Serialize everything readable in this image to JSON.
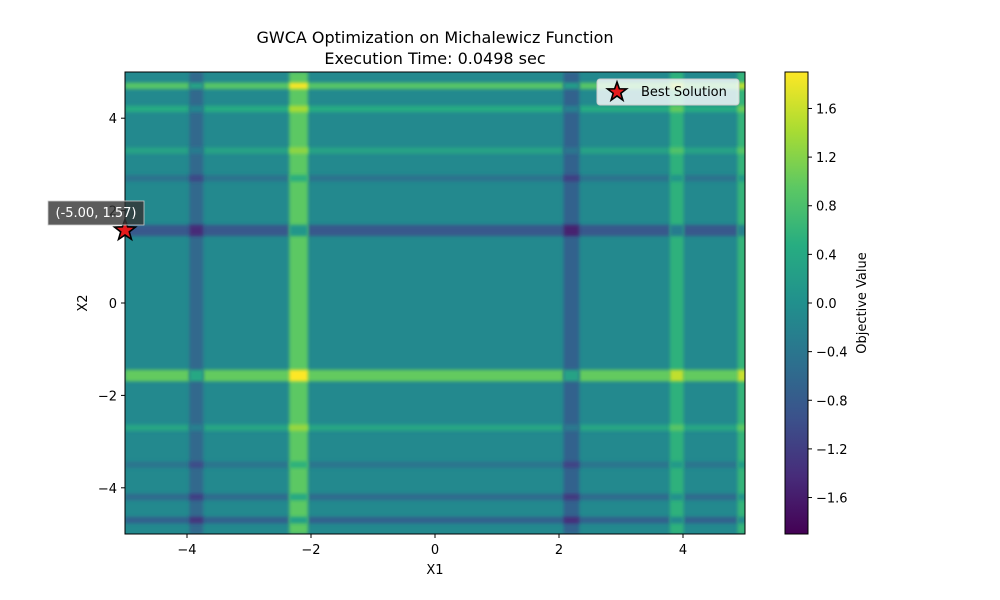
{
  "chart_data": {
    "type": "heatmap",
    "title": "GWCA Optimization on Michalewicz Function",
    "subtitle": "Execution Time: 0.0498 sec",
    "xlabel": "X1",
    "ylabel": "X2",
    "xlim": [
      -5,
      5
    ],
    "ylim": [
      -5,
      5
    ],
    "xticks": [
      "−4",
      "−2",
      "0",
      "2",
      "4"
    ],
    "xtick_values": [
      -4,
      -2,
      0,
      2,
      4
    ],
    "yticks": [
      "−4",
      "−2",
      "0",
      "2",
      "4"
    ],
    "ytick_values": [
      -4,
      -2,
      0,
      2,
      4
    ],
    "colormap": "viridis",
    "colorbar": {
      "label": "Objective Value",
      "range": [
        -1.9,
        1.9
      ],
      "ticks": [
        "−1.6",
        "−1.2",
        "−0.8",
        "−0.4",
        "0.0",
        "0.4",
        "0.8",
        "1.2",
        "1.6"
      ],
      "tick_values": [
        -1.6,
        -1.2,
        -0.8,
        -0.4,
        0.0,
        0.4,
        0.8,
        1.2,
        1.6
      ]
    },
    "legend": {
      "placement": "top-right",
      "entries": [
        "Best Solution"
      ]
    },
    "best_solution": {
      "x": -5.0,
      "y": 1.57,
      "label": "(-5.00, 1.57)",
      "marker": "star",
      "color": "#e41a1c"
    },
    "bands": {
      "x": [
        {
          "pos": -3.85,
          "value": -0.6,
          "width": 0.22
        },
        {
          "pos": -2.2,
          "value": 0.95,
          "width": 0.3
        },
        {
          "pos": 2.2,
          "value": -0.7,
          "width": 0.25
        },
        {
          "pos": 3.9,
          "value": 0.55,
          "width": 0.22
        },
        {
          "pos": 4.95,
          "value": 0.6,
          "width": 0.14
        }
      ],
      "y": [
        {
          "pos": 4.7,
          "value": 0.9,
          "width": 0.14
        },
        {
          "pos": 4.2,
          "value": 0.45,
          "width": 0.14
        },
        {
          "pos": 3.3,
          "value": 0.3,
          "width": 0.14
        },
        {
          "pos": 2.7,
          "value": -0.45,
          "width": 0.14
        },
        {
          "pos": 1.57,
          "value": -0.85,
          "width": 0.24
        },
        {
          "pos": -1.57,
          "value": 1.0,
          "width": 0.25
        },
        {
          "pos": -2.7,
          "value": 0.35,
          "width": 0.14
        },
        {
          "pos": -3.5,
          "value": -0.4,
          "width": 0.14
        },
        {
          "pos": -4.2,
          "value": -0.55,
          "width": 0.14
        },
        {
          "pos": -4.7,
          "value": -0.7,
          "width": 0.14
        }
      ]
    }
  }
}
